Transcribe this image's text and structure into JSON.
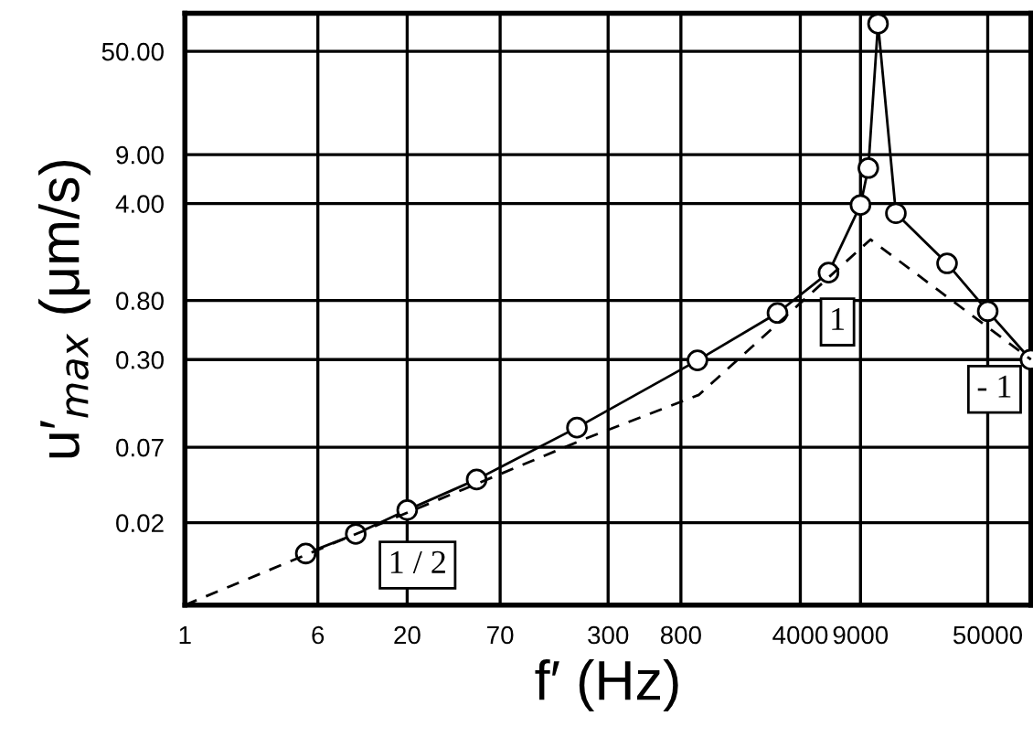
{
  "chart_data": {
    "type": "line",
    "xlabel": "f′ (Hz)",
    "ylabel": "u′$_{max}$ (μm/s)",
    "log": "xy",
    "grid": true,
    "xlim": [
      1,
      89500
    ],
    "ylim": [
      0.0051,
      94
    ],
    "xticks": [
      1,
      6,
      20,
      70,
      300,
      800,
      4000,
      9000,
      50000
    ],
    "yticks": [
      {
        "value": 0.02,
        "label": "0.02"
      },
      {
        "value": 0.07,
        "label": "0.07"
      },
      {
        "value": 0.3,
        "label": "0.30"
      },
      {
        "value": 0.8,
        "label": "0.80"
      },
      {
        "value": 4,
        "label": "4.00"
      },
      {
        "value": 9,
        "label": "9.00"
      },
      {
        "value": 50,
        "label": "50.00"
      }
    ],
    "series": [
      {
        "color": "#000000",
        "marker": "circle",
        "line_style": "solid",
        "x": [
          5.1,
          10,
          20,
          51,
          197,
          1000,
          2940,
          5850,
          9000,
          10000,
          11400,
          14500,
          28900,
          50000,
          89000
        ],
        "values": [
          0.012,
          0.0166,
          0.0247,
          0.041,
          0.097,
          0.296,
          0.65,
          1.27,
          3.9,
          7.2,
          79,
          3.4,
          1.48,
          0.67,
          0.3
        ]
      },
      {
        "color": "#000000",
        "marker": "none",
        "line_style": "dashed",
        "x": [
          1,
          217,
          1020,
          10300,
          89500
        ],
        "values": [
          0.0051,
          0.08,
          0.167,
          2.2,
          0.3
        ]
      }
    ],
    "annotations": [
      {
        "text": "1 / 2",
        "x": 23,
        "y": 0.0099
      },
      {
        "text": "1",
        "x": 6600,
        "y": 0.56
      },
      {
        "text": "- 1",
        "x": 54800,
        "y": 0.183
      }
    ]
  }
}
